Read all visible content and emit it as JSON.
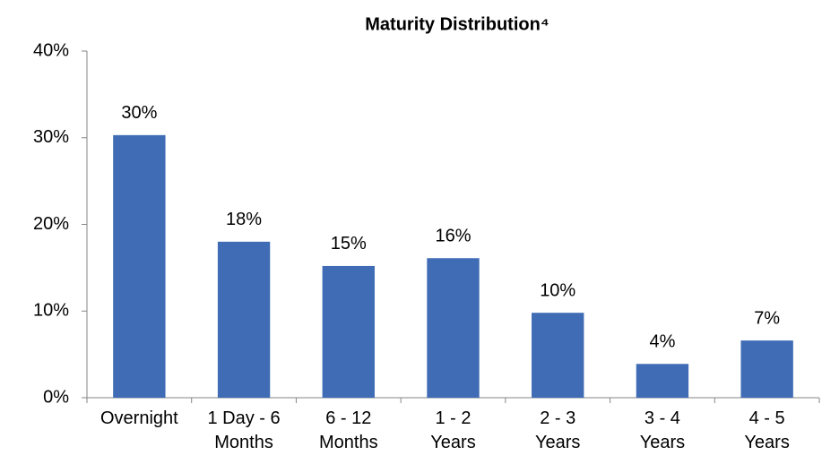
{
  "chart_data": {
    "type": "bar",
    "title": "Maturity Distribution⁴",
    "categories": [
      "Overnight",
      "1 Day - 6\nMonths",
      "6 - 12\nMonths",
      "1 - 2\nYears",
      "2 - 3\nYears",
      "3 - 4\nYears",
      "4 - 5\nYears"
    ],
    "values": [
      30.3,
      18.0,
      15.2,
      16.1,
      9.8,
      3.9,
      6.6
    ],
    "value_labels": [
      "30%",
      "18%",
      "15%",
      "16%",
      "10%",
      "4%",
      "7%"
    ],
    "color": "#3f6cb5",
    "ylim": [
      0,
      40
    ],
    "yticks": [
      {
        "value": 0,
        "label": "0%"
      },
      {
        "value": 10,
        "label": "10%"
      },
      {
        "value": 20,
        "label": "20%"
      },
      {
        "value": 30,
        "label": "30%"
      },
      {
        "value": 40,
        "label": "40%"
      }
    ],
    "grid": false
  }
}
